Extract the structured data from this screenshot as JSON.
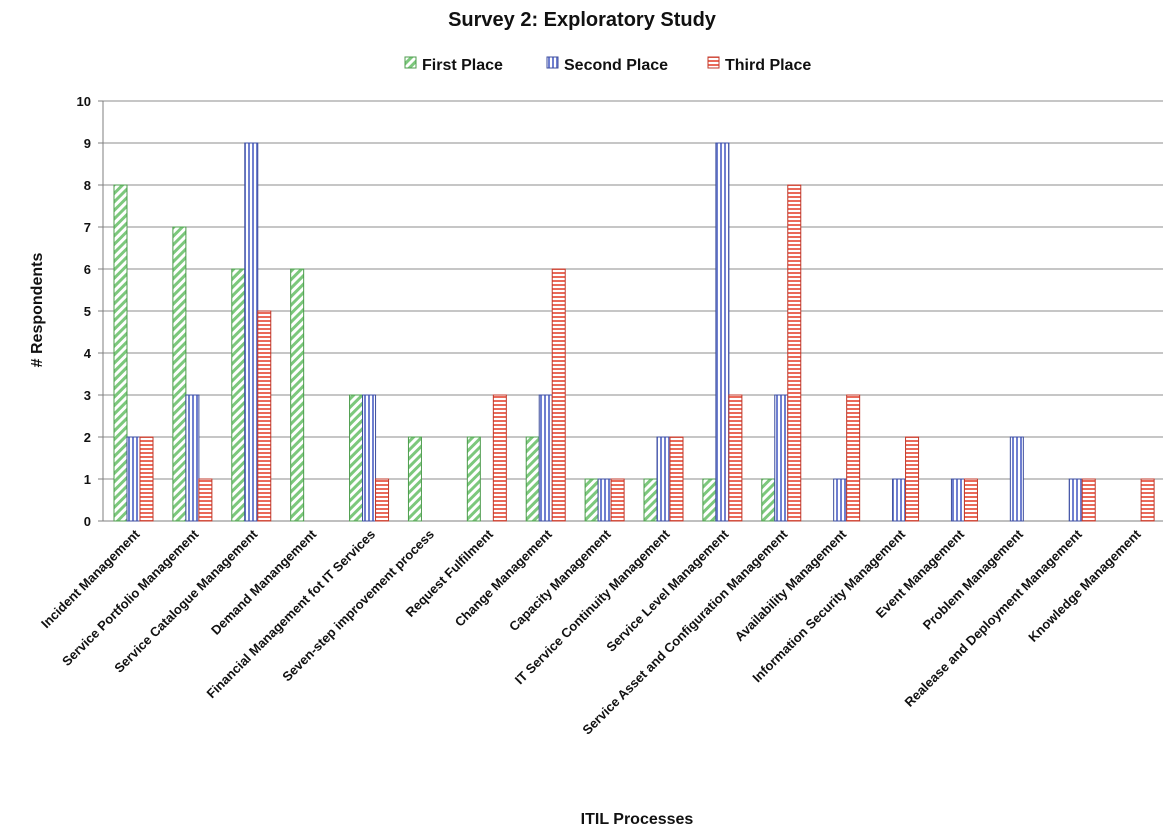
{
  "chart_data": {
    "type": "bar",
    "title": "Survey 2: Exploratory Study",
    "xlabel": "ITIL Processes",
    "ylabel": "# Respondents",
    "ylim": [
      0,
      10
    ],
    "yticks": [
      0,
      1,
      2,
      3,
      4,
      5,
      6,
      7,
      8,
      9,
      10
    ],
    "grid": true,
    "legend_position": "top",
    "categories": [
      "Incident Management",
      "Service Portfolio Management",
      "Service Catalogue Management",
      "Demand Manangement",
      "Financial Management fot IT Services",
      "Seven-step improvement process",
      "Request Fulfilment",
      "Change Management",
      "Capacity Management",
      "IT Service Continuity Management",
      "Service Level Management",
      "Service Asset and Configuration Management",
      "Availability Management",
      "Information Security Management",
      "Event Management",
      "Problem Management",
      "Realease and Deployment Management",
      "Knowledge Management"
    ],
    "series": [
      {
        "name": "First Place",
        "color": "#a8dfa8",
        "stroke": "#4c9c4c",
        "pattern": "diagonal",
        "values": [
          8,
          7,
          6,
          6,
          3,
          2,
          2,
          2,
          1,
          1,
          1,
          1,
          0,
          0,
          0,
          0,
          0,
          0
        ]
      },
      {
        "name": "Second Place",
        "color": "#9aa6e0",
        "stroke": "#3c4d9c",
        "pattern": "vertical",
        "values": [
          2,
          3,
          9,
          0,
          3,
          0,
          0,
          3,
          1,
          2,
          9,
          3,
          1,
          1,
          1,
          2,
          1,
          0
        ]
      },
      {
        "name": "Third Place",
        "color": "#f0a07e",
        "stroke": "#c0392b",
        "pattern": "horizontal",
        "values": [
          2,
          1,
          5,
          0,
          1,
          0,
          3,
          6,
          1,
          2,
          3,
          8,
          3,
          2,
          1,
          0,
          1,
          1
        ]
      }
    ]
  }
}
